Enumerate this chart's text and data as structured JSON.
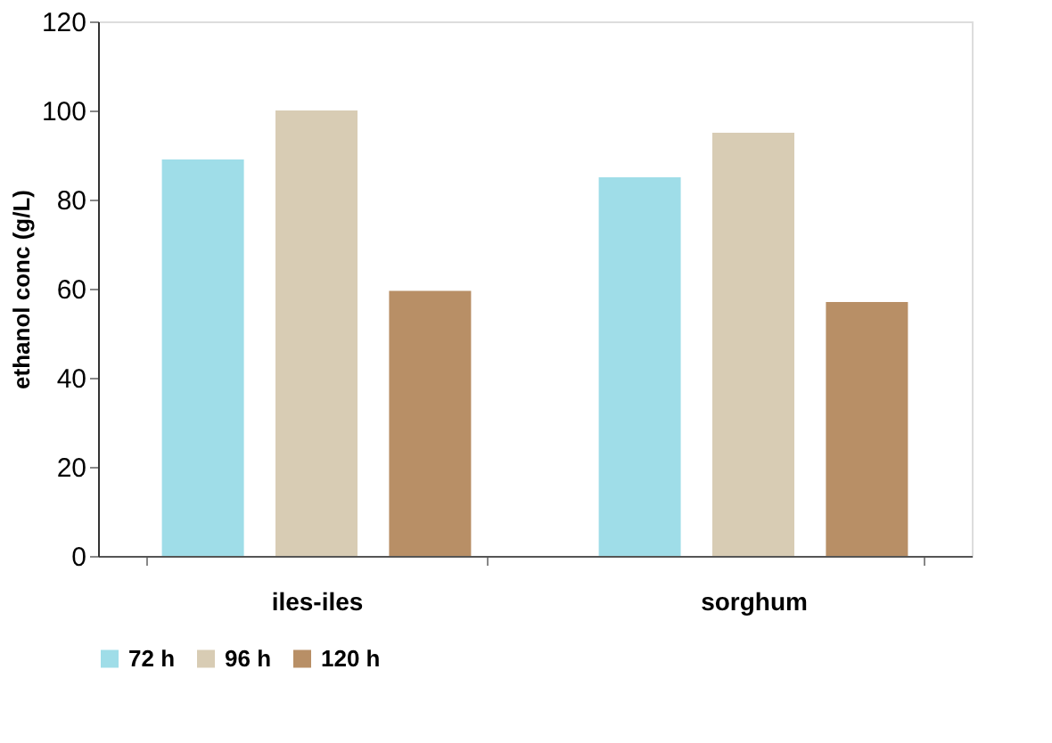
{
  "chart_data": {
    "type": "bar",
    "ylabel": "ethanol conc (g/L)",
    "categories": [
      "iles-iles",
      "sorghum"
    ],
    "series": [
      {
        "name": "72 h",
        "color": "#9fdde8",
        "values": [
          89,
          85
        ]
      },
      {
        "name": "96 h",
        "color": "#d8ccb4",
        "values": [
          100,
          95
        ]
      },
      {
        "name": "120 h",
        "color": "#b88f66",
        "values": [
          59.5,
          57
        ]
      }
    ],
    "ylim": [
      0,
      120
    ],
    "yticks": [
      0,
      20,
      40,
      60,
      80,
      100,
      120
    ],
    "grid": false,
    "legend": "bottom"
  }
}
